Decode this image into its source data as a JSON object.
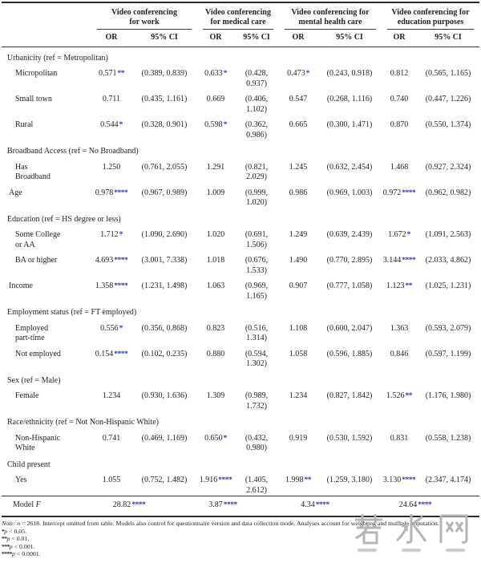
{
  "header": {
    "groups": [
      {
        "line1": "Video conferencing",
        "line2": "for work"
      },
      {
        "line1": "Video conferencing",
        "line2": "for medical care"
      },
      {
        "line1": "Video conferencing for",
        "line2": "mental health care"
      },
      {
        "line1": "Video conferencing for",
        "line2": "education purposes"
      }
    ],
    "or_label": "OR",
    "ci_label": "95% CI"
  },
  "blocks": [
    {
      "type": "section",
      "header": "Urbanicity (ref = Metropolitan)"
    },
    {
      "type": "row",
      "indent": true,
      "label_lines": [
        "Micropolitan"
      ],
      "cells": [
        {
          "or": "0.571",
          "stars": "**",
          "ci": "(0.389, 0.839)"
        },
        {
          "or": "0.633",
          "stars": "*",
          "ci": "(0.428, 0.937)"
        },
        {
          "or": "0.473",
          "stars": "*",
          "ci": "(0.243, 0.918)"
        },
        {
          "or": "0.812",
          "stars": "",
          "ci": "(0.565, 1.165)"
        }
      ]
    },
    {
      "type": "row",
      "indent": true,
      "label_lines": [
        "Small town"
      ],
      "cells": [
        {
          "or": "0.711",
          "stars": "",
          "ci": "(0.435, 1.161)"
        },
        {
          "or": "0.669",
          "stars": "",
          "ci": "(0.406, 1.102)"
        },
        {
          "or": "0.547",
          "stars": "",
          "ci": "(0.268, 1.116)"
        },
        {
          "or": "0.740",
          "stars": "",
          "ci": "(0.447, 1.226)"
        }
      ]
    },
    {
      "type": "row",
      "indent": true,
      "label_lines": [
        "Rural"
      ],
      "cells": [
        {
          "or": "0.544",
          "stars": "*",
          "ci": "(0.328, 0.901)"
        },
        {
          "or": "0.598",
          "stars": "*",
          "ci": "(0.362, 0.986)"
        },
        {
          "or": "0.665",
          "stars": "",
          "ci": "(0.300, 1.471)"
        },
        {
          "or": "0.870",
          "stars": "",
          "ci": "(0.550, 1.374)"
        }
      ]
    },
    {
      "type": "section",
      "header": "Broadband Access (ref = No Broadband)"
    },
    {
      "type": "row",
      "indent": true,
      "label_lines": [
        "Has",
        "Broadband"
      ],
      "cells": [
        {
          "or": "1.250",
          "stars": "",
          "ci": "(0.761, 2.055)"
        },
        {
          "or": "1.291",
          "stars": "",
          "ci": "(0.821, 2.029)"
        },
        {
          "or": "1.245",
          "stars": "",
          "ci": "(0.632, 2.454)"
        },
        {
          "or": "1.468",
          "stars": "",
          "ci": "(0.927, 2.324)"
        }
      ]
    },
    {
      "type": "row",
      "indent": false,
      "label_lines": [
        "Age"
      ],
      "cells": [
        {
          "or": "0.978",
          "stars": "****",
          "ci": "(0.967, 0.989)"
        },
        {
          "or": "1.009",
          "stars": "",
          "ci": "(0.999, 1.020)"
        },
        {
          "or": "0.986",
          "stars": "",
          "ci": "(0.969, 1.003)"
        },
        {
          "or": "0.972",
          "stars": "****",
          "ci": "(0.962, 0.982)"
        }
      ]
    },
    {
      "type": "section",
      "header": "Education (ref = HS degree or less)"
    },
    {
      "type": "row",
      "indent": true,
      "label_lines": [
        "Some College",
        "or AA"
      ],
      "cells": [
        {
          "or": "1.712",
          "stars": "*",
          "ci": "(1.090, 2.690)"
        },
        {
          "or": "1.020",
          "stars": "",
          "ci": "(0.691, 1.506)"
        },
        {
          "or": "1.249",
          "stars": "",
          "ci": "(0.639, 2.439)"
        },
        {
          "or": "1.672",
          "stars": "*",
          "ci": "(1.091, 2.563)"
        }
      ]
    },
    {
      "type": "row",
      "indent": true,
      "label_lines": [
        "BA or higher"
      ],
      "cells": [
        {
          "or": "4.693",
          "stars": "****",
          "ci": "(3.001, 7.338)"
        },
        {
          "or": "1.018",
          "stars": "",
          "ci": "(0.676, 1.533)"
        },
        {
          "or": "1.490",
          "stars": "",
          "ci": "(0.770, 2.895)"
        },
        {
          "or": "3.144",
          "stars": "****",
          "ci": "(2.033, 4.862)"
        }
      ]
    },
    {
      "type": "row",
      "indent": false,
      "label_lines": [
        "Income"
      ],
      "cells": [
        {
          "or": "1.358",
          "stars": "****",
          "ci": "(1.231, 1.498)"
        },
        {
          "or": "1.063",
          "stars": "",
          "ci": "(0.969, 1.165)"
        },
        {
          "or": "0.907",
          "stars": "",
          "ci": "(0.777, 1.058)"
        },
        {
          "or": "1.123",
          "stars": "**",
          "ci": "(1.025, 1.231)"
        }
      ]
    },
    {
      "type": "section",
      "header": "Employment status (ref = FT employed)"
    },
    {
      "type": "row",
      "indent": true,
      "label_lines": [
        "Employed",
        "part-time"
      ],
      "cells": [
        {
          "or": "0.556",
          "stars": "*",
          "ci": "(0.356, 0.868)"
        },
        {
          "or": "0.823",
          "stars": "",
          "ci": "(0.516, 1.314)"
        },
        {
          "or": "1.108",
          "stars": "",
          "ci": "(0.600, 2.047)"
        },
        {
          "or": "1.363",
          "stars": "",
          "ci": "(0.593, 2.079)"
        }
      ]
    },
    {
      "type": "row",
      "indent": true,
      "label_lines": [
        "Not employed"
      ],
      "cells": [
        {
          "or": "0.154",
          "stars": "****",
          "ci": "(0.102, 0.235)"
        },
        {
          "or": "0.880",
          "stars": "",
          "ci": "(0.594, 1.302)"
        },
        {
          "or": "1.058",
          "stars": "",
          "ci": "(0.596, 1.885)"
        },
        {
          "or": "0.846",
          "stars": "",
          "ci": "(0.597, 1.199)"
        }
      ]
    },
    {
      "type": "section",
      "header": "Sex (ref = Male)"
    },
    {
      "type": "row",
      "indent": true,
      "label_lines": [
        "Female"
      ],
      "cells": [
        {
          "or": "1.234",
          "stars": "",
          "ci": "(0.930, 1.636)"
        },
        {
          "or": "1.309",
          "stars": "",
          "ci": "(0.989, 1.732)"
        },
        {
          "or": "1.234",
          "stars": "",
          "ci": "(0.827, 1.842)"
        },
        {
          "or": "1.526",
          "stars": "**",
          "ci": "(1.176, 1.980)"
        }
      ]
    },
    {
      "type": "section",
      "header": "Race/ethnicity (ref = Not Non-Hispanic White)"
    },
    {
      "type": "row",
      "indent": true,
      "label_lines": [
        "Non-Hispanic",
        "White"
      ],
      "cells": [
        {
          "or": "0.741",
          "stars": "",
          "ci": "(0.469, 1.169)"
        },
        {
          "or": "0.650",
          "stars": "*",
          "ci": "(0.432, 0.980)"
        },
        {
          "or": "0.919",
          "stars": "",
          "ci": "(0.530, 1.592)"
        },
        {
          "or": "0.831",
          "stars": "",
          "ci": "(0.558, 1.238)"
        }
      ]
    },
    {
      "type": "section",
      "header": "Child present"
    },
    {
      "type": "row",
      "indent": true,
      "label_lines": [
        "Yes"
      ],
      "cells": [
        {
          "or": "1.055",
          "stars": "",
          "ci": "(0.752, 1.482)"
        },
        {
          "or": "1.916",
          "stars": "****",
          "ci": "(1.405, 2.612)"
        },
        {
          "or": "1.998",
          "stars": "**",
          "ci": "(1.259, 3.180)"
        },
        {
          "or": "3.130",
          "stars": "****",
          "ci": "(2.347, 4.174)"
        }
      ]
    }
  ],
  "model_row": {
    "label": "Model",
    "stat": "F",
    "values": [
      {
        "value": "28.82",
        "stars": "****"
      },
      {
        "value": "3.87",
        "stars": "****"
      },
      {
        "value": "4.34",
        "stars": "****"
      },
      {
        "value": "24.64",
        "stars": "****"
      }
    ]
  },
  "notes": {
    "note_label": "Note:",
    "note_n": "n",
    "note_text": " = 2618. Intercept omitted from table. Models also control for questionnaire version and data collection mode. Analyses account for weighting and multiple imputation.",
    "sig": [
      {
        "stars": "*",
        "p": "p",
        "text": " < 0.05."
      },
      {
        "stars": "**",
        "p": "p",
        "text": " < 0.01."
      },
      {
        "stars": "***",
        "p": "p",
        "text": " < 0.001."
      },
      {
        "stars": "****",
        "p": "p",
        "text": " < 0.0001."
      }
    ]
  },
  "watermark": {
    "text": "若水网"
  },
  "colors": {
    "star_blue": "#3434ae",
    "text": "#1f1f1f",
    "rule": "#2a2a2a",
    "watermark": "#b5b5b5"
  }
}
